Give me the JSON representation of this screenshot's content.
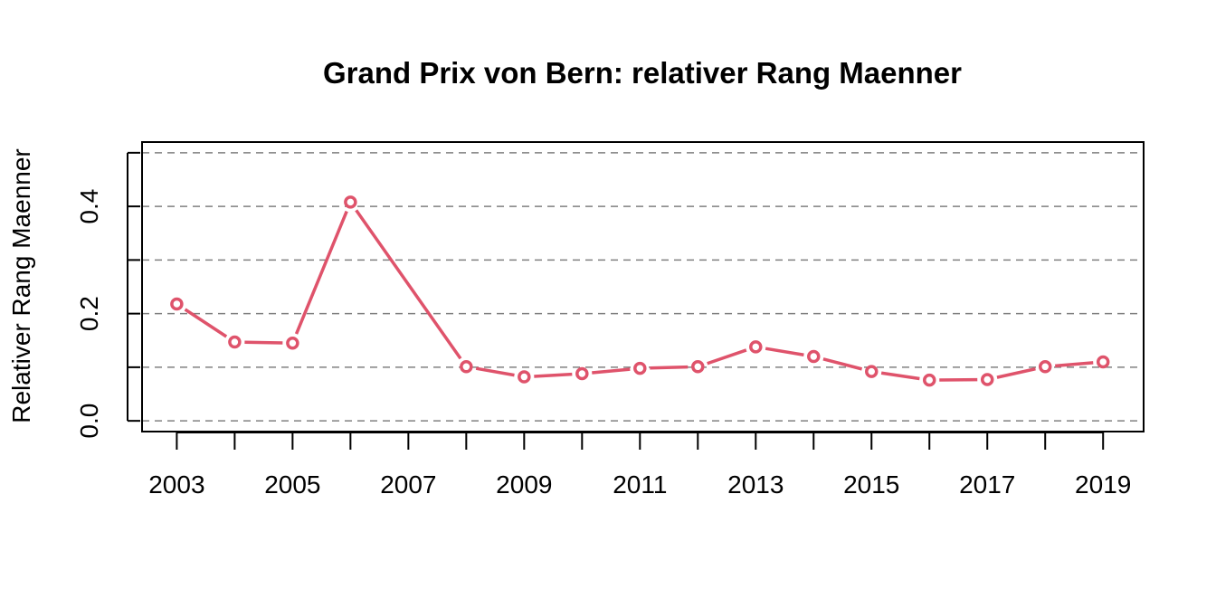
{
  "chart_data": {
    "type": "line",
    "title": "Grand Prix von Bern: relativer Rang Maenner",
    "xlabel": "",
    "ylabel": "Relativer Rang Maenner",
    "x": [
      2003,
      2004,
      2005,
      2006,
      2007,
      2008,
      2009,
      2010,
      2011,
      2012,
      2013,
      2014,
      2015,
      2016,
      2017,
      2018,
      2019
    ],
    "series": [
      {
        "values": [
          0.218,
          0.147,
          0.145,
          0.408,
          null,
          0.101,
          0.082,
          0.088,
          0.098,
          0.101,
          0.138,
          0.12,
          0.092,
          0.076,
          0.077,
          0.101,
          0.11
        ],
        "color": "#DF536B"
      }
    ],
    "x_tick_labels": [
      "2003",
      "2005",
      "2007",
      "2009",
      "2011",
      "2013",
      "2015",
      "2017",
      "2019"
    ],
    "x_ticks": [
      2003,
      2004,
      2005,
      2006,
      2007,
      2008,
      2009,
      2010,
      2011,
      2012,
      2013,
      2014,
      2015,
      2016,
      2017,
      2018,
      2019
    ],
    "y_tick_labels": [
      "0.0",
      "0.2",
      "0.4"
    ],
    "y_ticks": [
      0,
      0.1,
      0.2,
      0.3,
      0.4,
      0.5
    ],
    "gridlines_y": [
      0,
      0.1,
      0.2,
      0.3,
      0.4,
      0.5
    ],
    "xlim": [
      2002.4,
      2019.7
    ],
    "ylim": [
      -0.02,
      0.52
    ],
    "grid": true,
    "line_style": "dashed-with-points"
  }
}
